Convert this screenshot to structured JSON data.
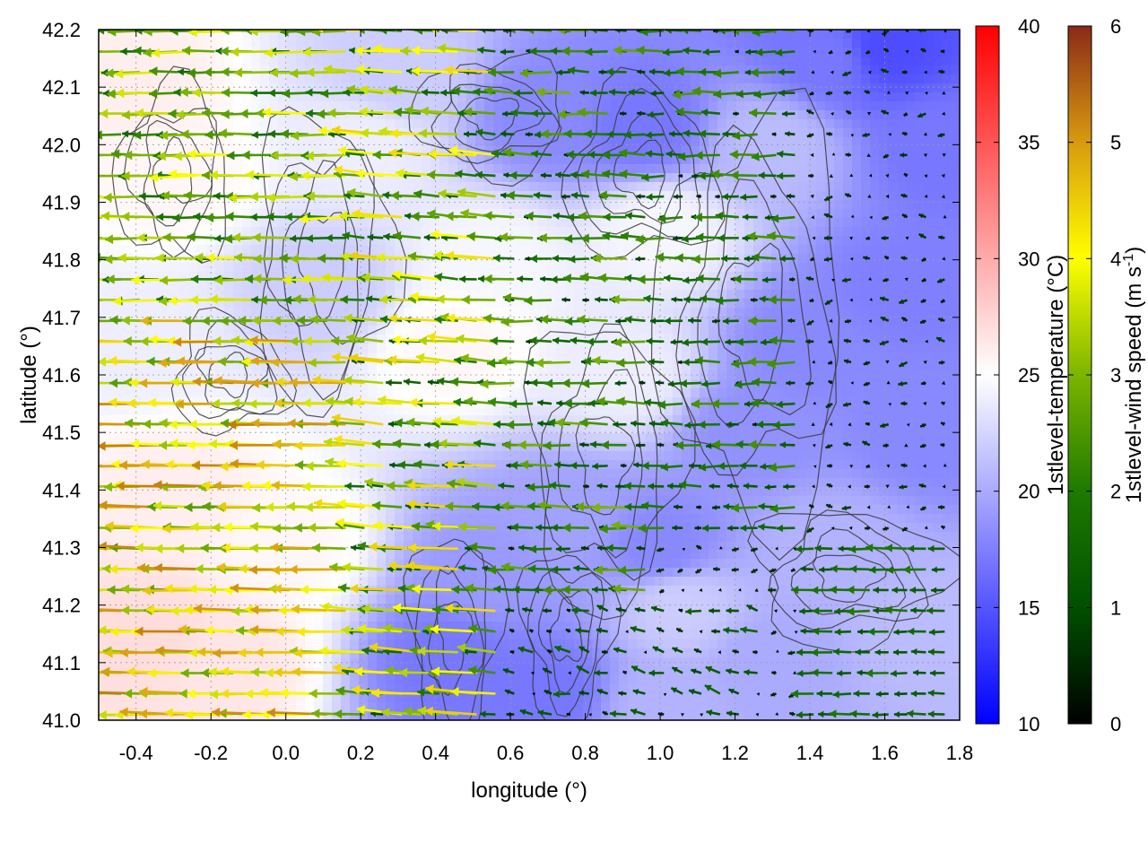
{
  "chart_data": {
    "type": "heatmap",
    "x_axis": {
      "label": "longitude (°)",
      "range": [
        -0.5,
        1.8
      ],
      "ticks": [
        -0.4,
        -0.2,
        0.0,
        0.2,
        0.4,
        0.6,
        0.8,
        1.0,
        1.2,
        1.4,
        1.6,
        1.8
      ]
    },
    "y_axis": {
      "label": "latitude (°)",
      "range": [
        41.0,
        42.2
      ],
      "ticks": [
        41.0,
        41.1,
        41.2,
        41.3,
        41.4,
        41.5,
        41.6,
        41.7,
        41.8,
        41.9,
        42.0,
        42.1,
        42.2
      ]
    },
    "grid": true,
    "temperature_colorbar": {
      "label": "1stlevel-temperature (°C)",
      "range": [
        10,
        40
      ],
      "ticks": [
        10,
        15,
        20,
        25,
        30,
        35,
        40
      ],
      "colors": [
        "#0000ff",
        "#ffffff",
        "#ff0000"
      ]
    },
    "wind_colorbar": {
      "label_main": "1stlevel-wind speed (m s",
      "label_sup": "-1",
      "label_end": ")",
      "range": [
        0,
        6
      ],
      "ticks": [
        0,
        1,
        2,
        3,
        4,
        5,
        6
      ],
      "colors": [
        "#000000",
        "#005000",
        "#1e7a00",
        "#7cb400",
        "#ffff00",
        "#d89a10",
        "#8a2a18"
      ]
    },
    "temperature_regions": [
      {
        "lon": -0.35,
        "lat": 41.15,
        "t": 27
      },
      {
        "lon": -0.15,
        "lat": 41.1,
        "t": 26.5
      },
      {
        "lon": -0.3,
        "lat": 41.4,
        "t": 26
      },
      {
        "lon": -0.4,
        "lat": 41.65,
        "t": 24
      },
      {
        "lon": -0.3,
        "lat": 41.95,
        "t": 25.5
      },
      {
        "lon": -0.4,
        "lat": 42.1,
        "t": 26
      },
      {
        "lon": 0.0,
        "lat": 41.3,
        "t": 25.5
      },
      {
        "lon": 0.1,
        "lat": 41.75,
        "t": 22
      },
      {
        "lon": 0.2,
        "lat": 42.0,
        "t": 24
      },
      {
        "lon": 0.3,
        "lat": 42.12,
        "t": 22
      },
      {
        "lon": 0.45,
        "lat": 41.65,
        "t": 25.5
      },
      {
        "lon": 0.55,
        "lat": 41.8,
        "t": 24.5
      },
      {
        "lon": 0.45,
        "lat": 41.1,
        "t": 17
      },
      {
        "lon": 0.55,
        "lat": 41.25,
        "t": 19
      },
      {
        "lon": 0.75,
        "lat": 41.35,
        "t": 19.5
      },
      {
        "lon": 0.7,
        "lat": 41.05,
        "t": 17
      },
      {
        "lon": 0.7,
        "lat": 42.05,
        "t": 18
      },
      {
        "lon": 0.95,
        "lat": 42.03,
        "t": 17
      },
      {
        "lon": 0.9,
        "lat": 41.6,
        "t": 24
      },
      {
        "lon": 1.0,
        "lat": 41.85,
        "t": 24.5
      },
      {
        "lon": 1.05,
        "lat": 41.2,
        "t": 22
      },
      {
        "lon": 1.0,
        "lat": 41.3,
        "t": 18
      },
      {
        "lon": 1.25,
        "lat": 41.5,
        "t": 18.5
      },
      {
        "lon": 1.4,
        "lat": 41.65,
        "t": 18
      },
      {
        "lon": 1.3,
        "lat": 42.0,
        "t": 21
      },
      {
        "lon": 1.45,
        "lat": 42.15,
        "t": 17
      },
      {
        "lon": 1.6,
        "lat": 42.17,
        "t": 14.5
      },
      {
        "lon": 1.75,
        "lat": 42.0,
        "t": 17
      },
      {
        "lon": 1.65,
        "lat": 41.75,
        "t": 17.5
      },
      {
        "lon": 1.7,
        "lat": 41.5,
        "t": 18
      },
      {
        "lon": 1.45,
        "lat": 41.3,
        "t": 20.5
      },
      {
        "lon": 1.7,
        "lat": 41.15,
        "t": 21
      },
      {
        "lon": 1.3,
        "lat": 41.1,
        "t": 20
      },
      {
        "lon": 1.0,
        "lat": 41.02,
        "t": 20.5
      }
    ],
    "wind_regimes": [
      {
        "lon_range": [
          -0.5,
          0.2
        ],
        "lat_range": [
          41.0,
          41.7
        ],
        "u": -3.6,
        "v": 0.05,
        "speed_range": [
          2.5,
          5.3
        ]
      },
      {
        "lon_range": [
          -0.5,
          0.2
        ],
        "lat_range": [
          41.7,
          42.2
        ],
        "u": -2.6,
        "v": 0.0,
        "speed_range": [
          1.5,
          4.0
        ]
      },
      {
        "lon_range": [
          0.2,
          0.6
        ],
        "lat_range": [
          41.0,
          42.2
        ],
        "u": -1.9,
        "v": 0.15,
        "speed_range": [
          1.0,
          4.5
        ]
      },
      {
        "lon_range": [
          0.6,
          1.0
        ],
        "lat_range": [
          41.2,
          42.2
        ],
        "u": -1.5,
        "v": 0.05,
        "speed_range": [
          0.5,
          3.0
        ]
      },
      {
        "lon_range": [
          0.6,
          1.3
        ],
        "lat_range": [
          41.0,
          41.2
        ],
        "u": -0.4,
        "v": 0.1,
        "speed_range": [
          0.0,
          1.5
        ]
      },
      {
        "lon_range": [
          1.0,
          1.4
        ],
        "lat_range": [
          41.3,
          42.2
        ],
        "u": -1.2,
        "v": 0.0,
        "speed_range": [
          0.3,
          2.5
        ]
      },
      {
        "lon_range": [
          1.4,
          1.8
        ],
        "lat_range": [
          41.0,
          41.3
        ],
        "u": -2.0,
        "v": 0.0,
        "speed_range": [
          1.0,
          2.0
        ]
      },
      {
        "lon_range": [
          1.4,
          1.8
        ],
        "lat_range": [
          41.3,
          42.2
        ],
        "u": -0.2,
        "v": 0.0,
        "speed_range": [
          0.0,
          0.8
        ]
      }
    ],
    "contour_levels_m": [
      300,
      500,
      700,
      900,
      1100
    ]
  }
}
